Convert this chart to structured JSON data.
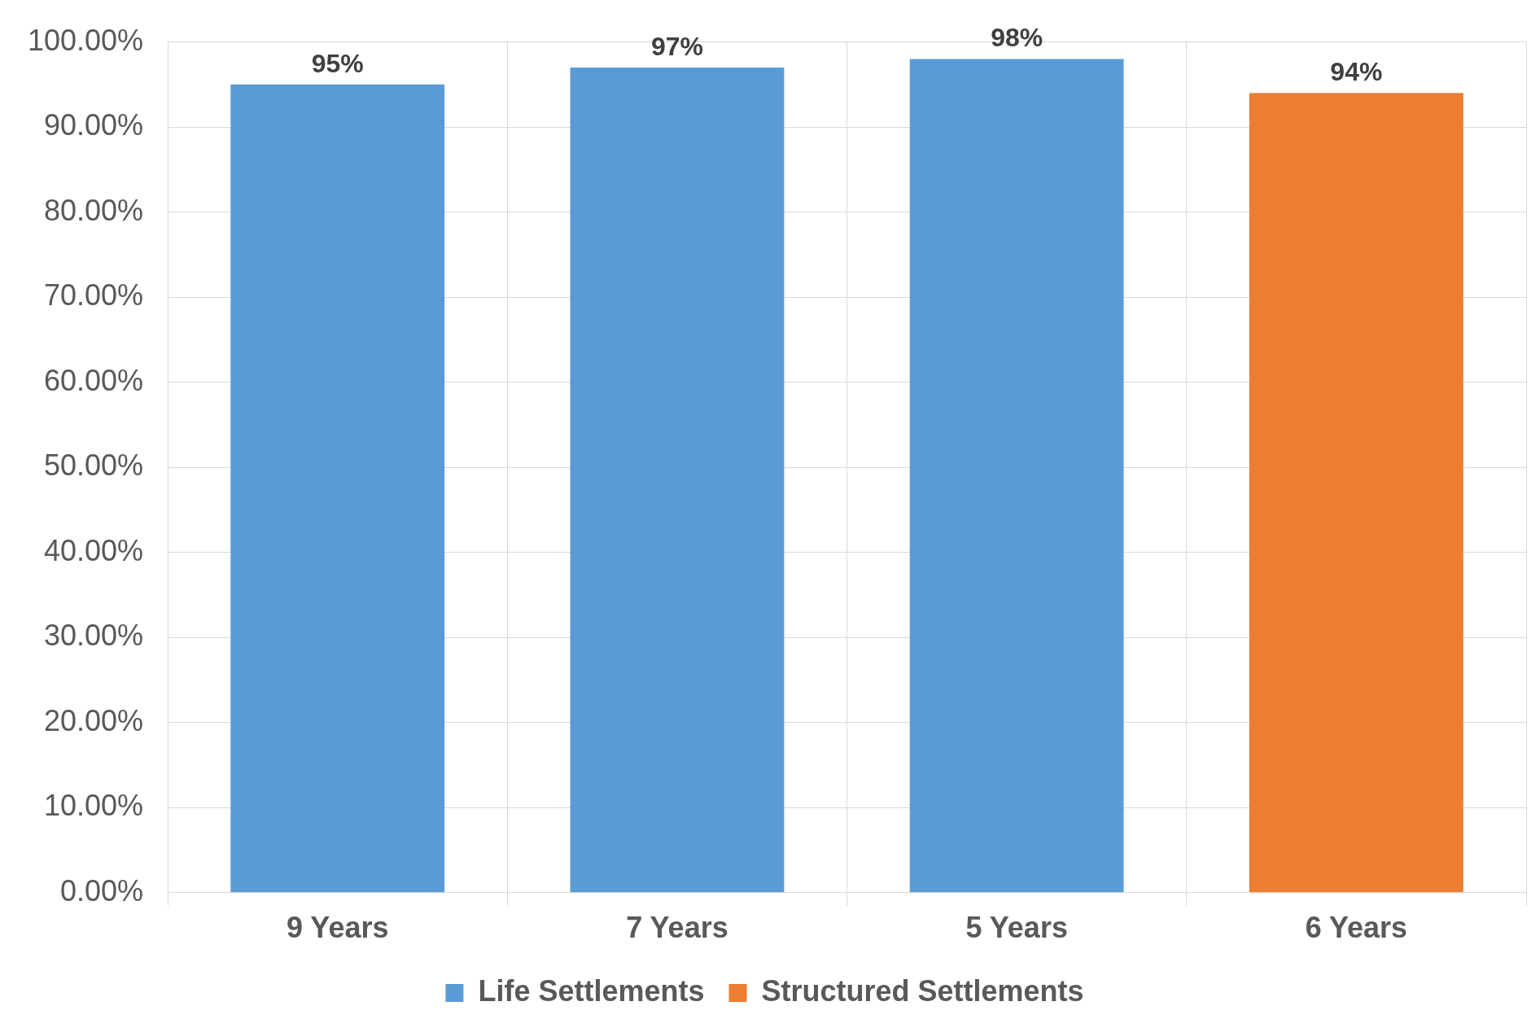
{
  "chart_data": {
    "type": "bar",
    "categories": [
      "9 Years",
      "7 Years",
      "5 Years",
      "6 Years"
    ],
    "series": [
      {
        "name": "Life Settlements",
        "color": "#5b9bd5",
        "values": [
          95,
          97,
          98,
          null
        ],
        "value_labels": [
          "95%",
          "97%",
          "98%",
          null
        ]
      },
      {
        "name": "Structured Settlements",
        "color": "#ed7d31",
        "values": [
          null,
          null,
          null,
          94
        ],
        "value_labels": [
          null,
          null,
          null,
          "94%"
        ]
      }
    ],
    "ylim": [
      0,
      100
    ],
    "yticks": [
      {
        "value": 0,
        "label": "0.00%"
      },
      {
        "value": 10,
        "label": "10.00%"
      },
      {
        "value": 20,
        "label": "20.00%"
      },
      {
        "value": 30,
        "label": "30.00%"
      },
      {
        "value": 40,
        "label": "40.00%"
      },
      {
        "value": 50,
        "label": "50.00%"
      },
      {
        "value": 60,
        "label": "60.00%"
      },
      {
        "value": 70,
        "label": "70.00%"
      },
      {
        "value": 80,
        "label": "80.00%"
      },
      {
        "value": 90,
        "label": "90.00%"
      },
      {
        "value": 100,
        "label": "100.00%"
      }
    ],
    "grid": true,
    "legend": "bottom"
  }
}
